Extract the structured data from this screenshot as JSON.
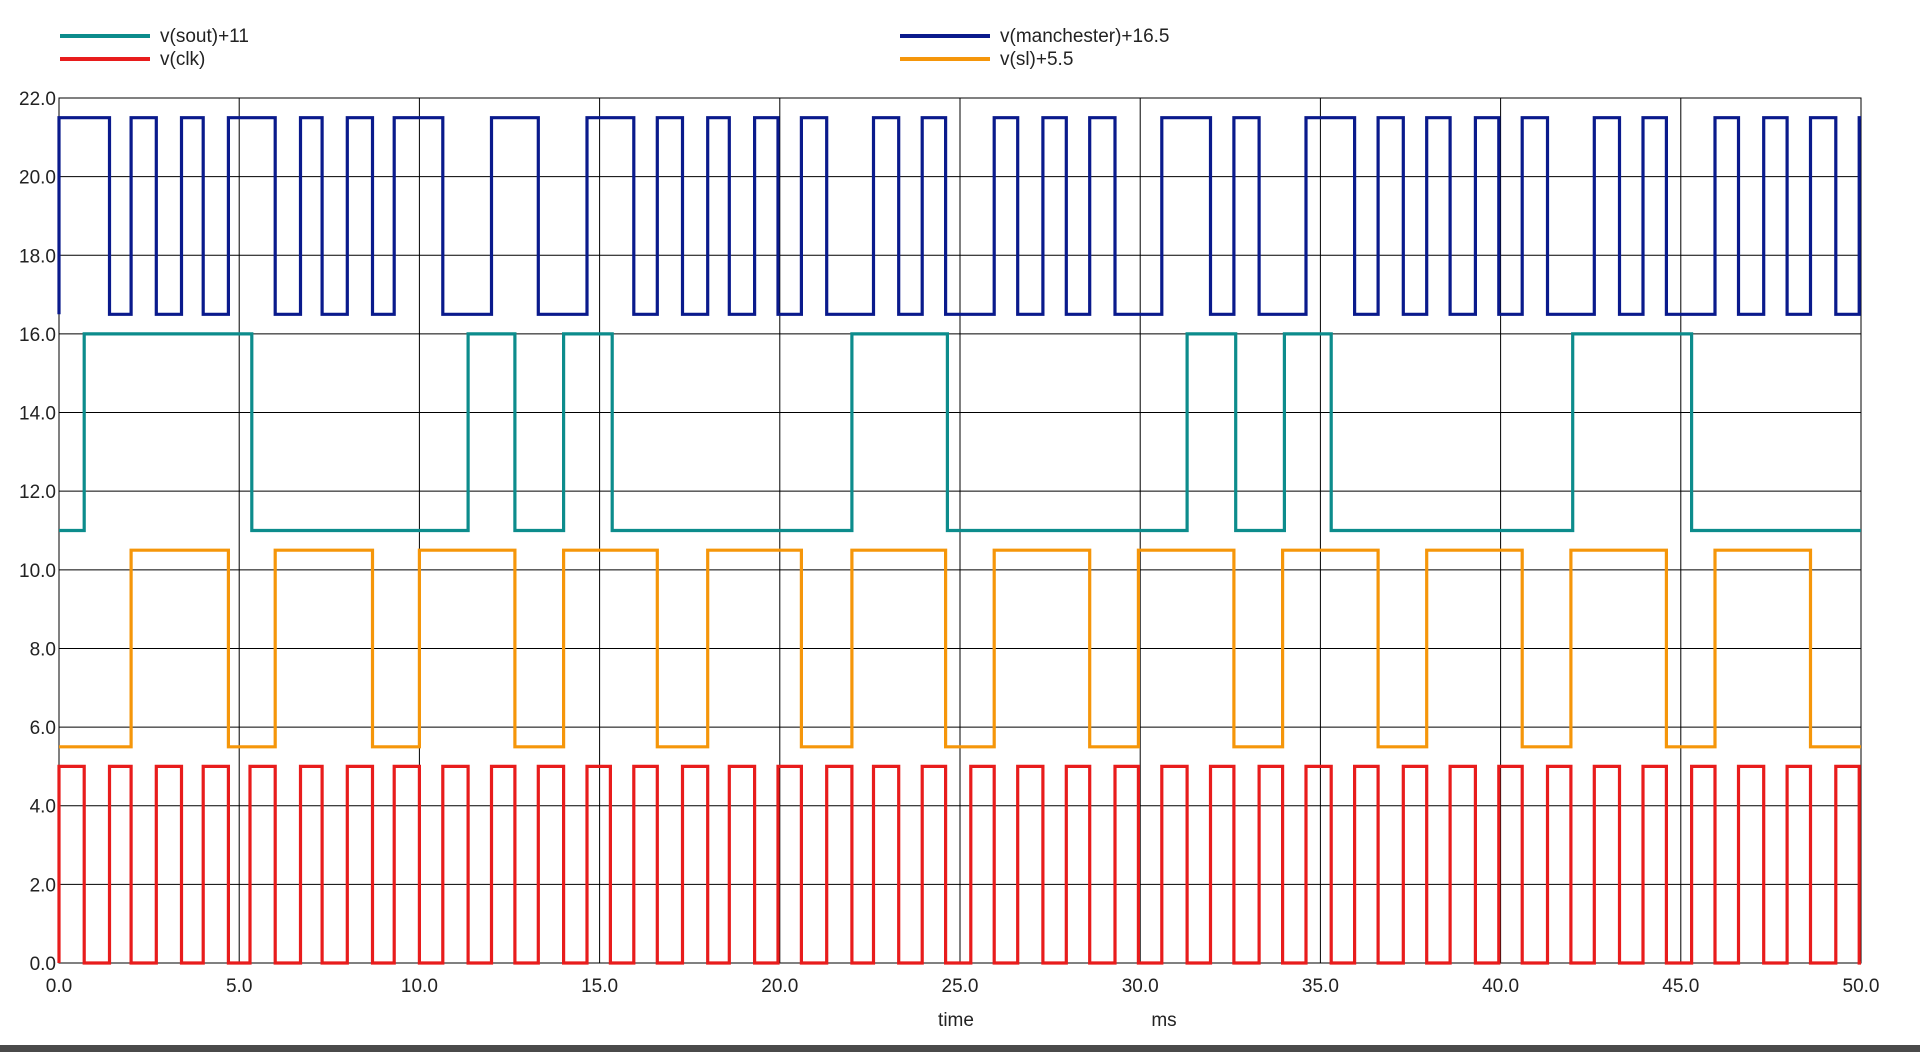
{
  "chart_data": {
    "type": "line",
    "title": "",
    "xlabel": "time",
    "xunit": "ms",
    "ylabel": "",
    "xlim": [
      0,
      50
    ],
    "ylim": [
      0,
      22
    ],
    "grid": true,
    "legend_position": "top",
    "x_ticks": [
      "0.0",
      "5.0",
      "10.0",
      "15.0",
      "20.0",
      "25.0",
      "30.0",
      "35.0",
      "40.0",
      "45.0",
      "50.0"
    ],
    "y_ticks": [
      "0.0",
      "2.0",
      "4.0",
      "6.0",
      "8.0",
      "10.0",
      "12.0",
      "14.0",
      "16.0",
      "18.0",
      "20.0",
      "22.0"
    ],
    "series": [
      {
        "name": "v(sout)+11",
        "color": "#0c8c8c",
        "low": 11,
        "high": 16,
        "initial": 11,
        "transitions": [
          0.7,
          5.35,
          11.35,
          12.65,
          14.0,
          15.35,
          22.0,
          24.65,
          31.3,
          32.65,
          34.0,
          35.3,
          42.0,
          45.3
        ]
      },
      {
        "name": "v(clk)",
        "color": "#e81c1c",
        "low": 0,
        "high": 5,
        "initial": 0,
        "transitions": [
          0.0,
          0.7,
          1.4,
          2.0,
          2.7,
          3.4,
          4.0,
          4.7,
          5.3,
          6.0,
          6.7,
          7.3,
          8.0,
          8.7,
          9.3,
          10.0,
          10.65,
          11.35,
          12.0,
          12.65,
          13.3,
          14.0,
          14.65,
          15.3,
          15.95,
          16.6,
          17.3,
          18.0,
          18.6,
          19.3,
          19.95,
          20.6,
          21.3,
          22.0,
          22.6,
          23.3,
          23.95,
          24.6,
          25.3,
          25.95,
          26.6,
          27.3,
          27.95,
          28.6,
          29.3,
          29.95,
          30.6,
          31.3,
          31.95,
          32.6,
          33.3,
          33.95,
          34.6,
          35.3,
          35.95,
          36.6,
          37.3,
          37.95,
          38.6,
          39.3,
          39.95,
          40.6,
          41.3,
          41.95,
          42.6,
          43.3,
          43.95,
          44.6,
          45.3,
          45.95,
          46.6,
          47.3,
          47.95,
          48.6,
          49.3,
          49.95
        ]
      },
      {
        "name": "v(manchester)+16.5",
        "color": "#0a1a8c",
        "low": 16.5,
        "high": 21.5,
        "initial": 16.5,
        "transitions": [
          0.0,
          1.4,
          2.0,
          2.7,
          3.4,
          4.0,
          4.7,
          6.0,
          6.7,
          7.3,
          8.0,
          8.7,
          9.3,
          10.65,
          12.0,
          13.3,
          14.65,
          15.95,
          16.6,
          17.3,
          18.0,
          18.6,
          19.3,
          19.95,
          20.6,
          21.3,
          22.6,
          23.3,
          23.95,
          24.6,
          25.95,
          26.6,
          27.3,
          27.95,
          28.6,
          29.3,
          30.6,
          31.95,
          32.6,
          33.3,
          34.6,
          35.95,
          36.6,
          37.3,
          37.95,
          38.6,
          39.3,
          39.95,
          40.6,
          41.3,
          42.6,
          43.3,
          43.95,
          44.6,
          45.95,
          46.6,
          47.3,
          47.95,
          48.6,
          49.3,
          49.95
        ]
      },
      {
        "name": "v(sl)+5.5",
        "color": "#f5960a",
        "low": 5.5,
        "high": 10.5,
        "initial": 5.5,
        "transitions": [
          2.0,
          4.7,
          6.0,
          8.7,
          10.0,
          12.65,
          14.0,
          16.6,
          18.0,
          20.6,
          22.0,
          24.6,
          25.95,
          28.6,
          29.95,
          32.6,
          33.95,
          36.6,
          37.95,
          40.6,
          41.95,
          44.6,
          45.95,
          48.6
        ]
      }
    ]
  }
}
